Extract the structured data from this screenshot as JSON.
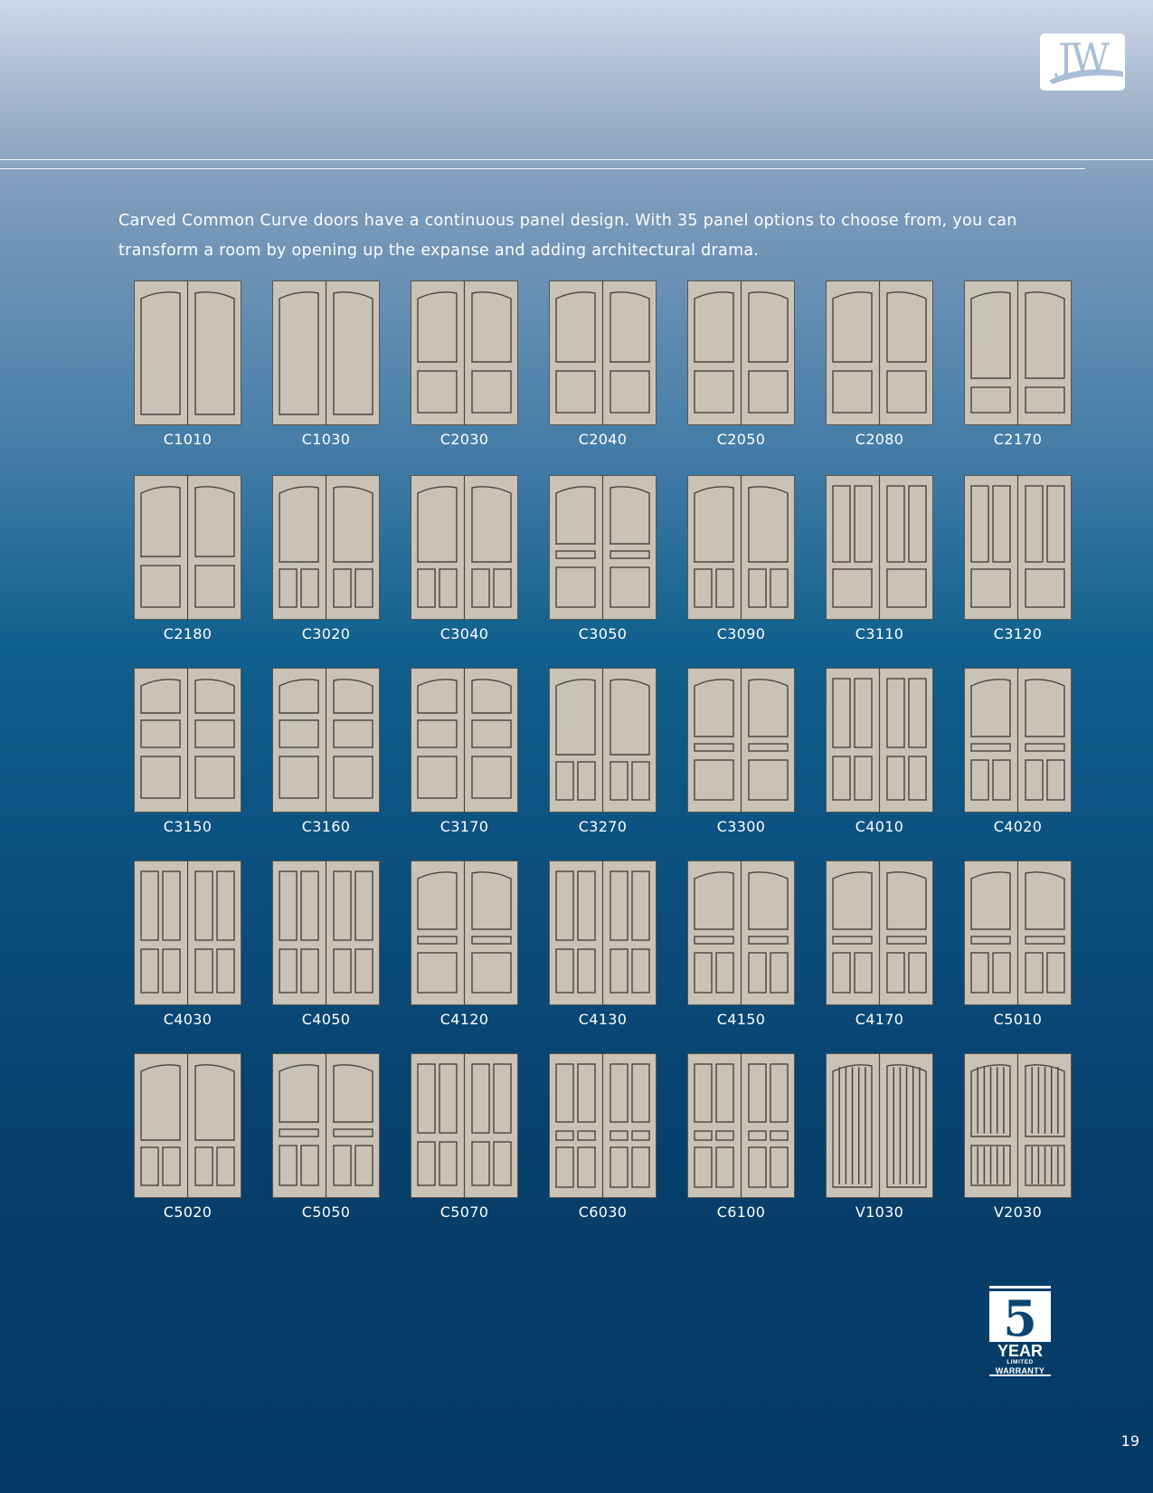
{
  "header": {
    "logo_text": "JW",
    "logo_icon": "jw-swoosh-logo"
  },
  "intro_text": "Carved Common Curve doors have a continuous panel design. With 35 panel options to choose from, you can transform a room by opening up the expanse and adding architectural drama.",
  "colors": {
    "door": "#c9c2b6",
    "door_line": "#4a4540",
    "logo_blue": "#a9bed6",
    "background_dark": "#053a66"
  },
  "doors": [
    {
      "code": "C1010",
      "design": "full-tall"
    },
    {
      "code": "C1030",
      "design": "full-tall-arch"
    },
    {
      "code": "C2030",
      "design": "two-panel"
    },
    {
      "code": "C2040",
      "design": "two-panel-wave"
    },
    {
      "code": "C2050",
      "design": "two-panel-curve"
    },
    {
      "code": "C2080",
      "design": "two-panel-s-curve"
    },
    {
      "code": "C2170",
      "design": "two-panel-small-bottom"
    },
    {
      "code": "C2180",
      "design": "two-panel-mid"
    },
    {
      "code": "C3020",
      "design": "top-two-narrow"
    },
    {
      "code": "C3040",
      "design": "curve-top-two-narrow"
    },
    {
      "code": "C3050",
      "design": "top-rail-bottom"
    },
    {
      "code": "C3090",
      "design": "top-two-narrow-tall"
    },
    {
      "code": "C3110",
      "design": "two-narrow-bottom"
    },
    {
      "code": "C3120",
      "design": "two-narrow-bottom-tall"
    },
    {
      "code": "C3150",
      "design": "three-stack"
    },
    {
      "code": "C3160",
      "design": "curve-three"
    },
    {
      "code": "C3170",
      "design": "s-curve-three"
    },
    {
      "code": "C3270",
      "design": "wave-two-narrow"
    },
    {
      "code": "C3300",
      "design": "wave-rail-bottom"
    },
    {
      "code": "C4010",
      "design": "two-narrow-two-narrow"
    },
    {
      "code": "C4020",
      "design": "wave-rail-two-narrow"
    },
    {
      "code": "C4030",
      "design": "curve-narrow-narrow"
    },
    {
      "code": "C4050",
      "design": "two-narrow-two-narrow-b"
    },
    {
      "code": "C4120",
      "design": "two-narrow-rail-bottom"
    },
    {
      "code": "C4130",
      "design": "curve-narrow-narrow-b"
    },
    {
      "code": "C4150",
      "design": "curve-rail-two-narrow"
    },
    {
      "code": "C4170",
      "design": "top-rail-two-small"
    },
    {
      "code": "C5010",
      "design": "two-narrow-rail-two-narrow"
    },
    {
      "code": "C5020",
      "design": "curve-narrow-rail-narrow"
    },
    {
      "code": "C5050",
      "design": "two-narrow-rail-two-narrow-b"
    },
    {
      "code": "C5070",
      "design": "s-curve-narrow-narrow"
    },
    {
      "code": "C6030",
      "design": "six-panel"
    },
    {
      "code": "C6100",
      "design": "six-panel-b"
    },
    {
      "code": "V1030",
      "design": "v-groove-full"
    },
    {
      "code": "V2030",
      "design": "v-groove-two"
    }
  ],
  "badge": {
    "number": "5",
    "year": "YEAR",
    "limited": "LIMITED",
    "warranty": "WARRANTY"
  },
  "page_number": "19"
}
